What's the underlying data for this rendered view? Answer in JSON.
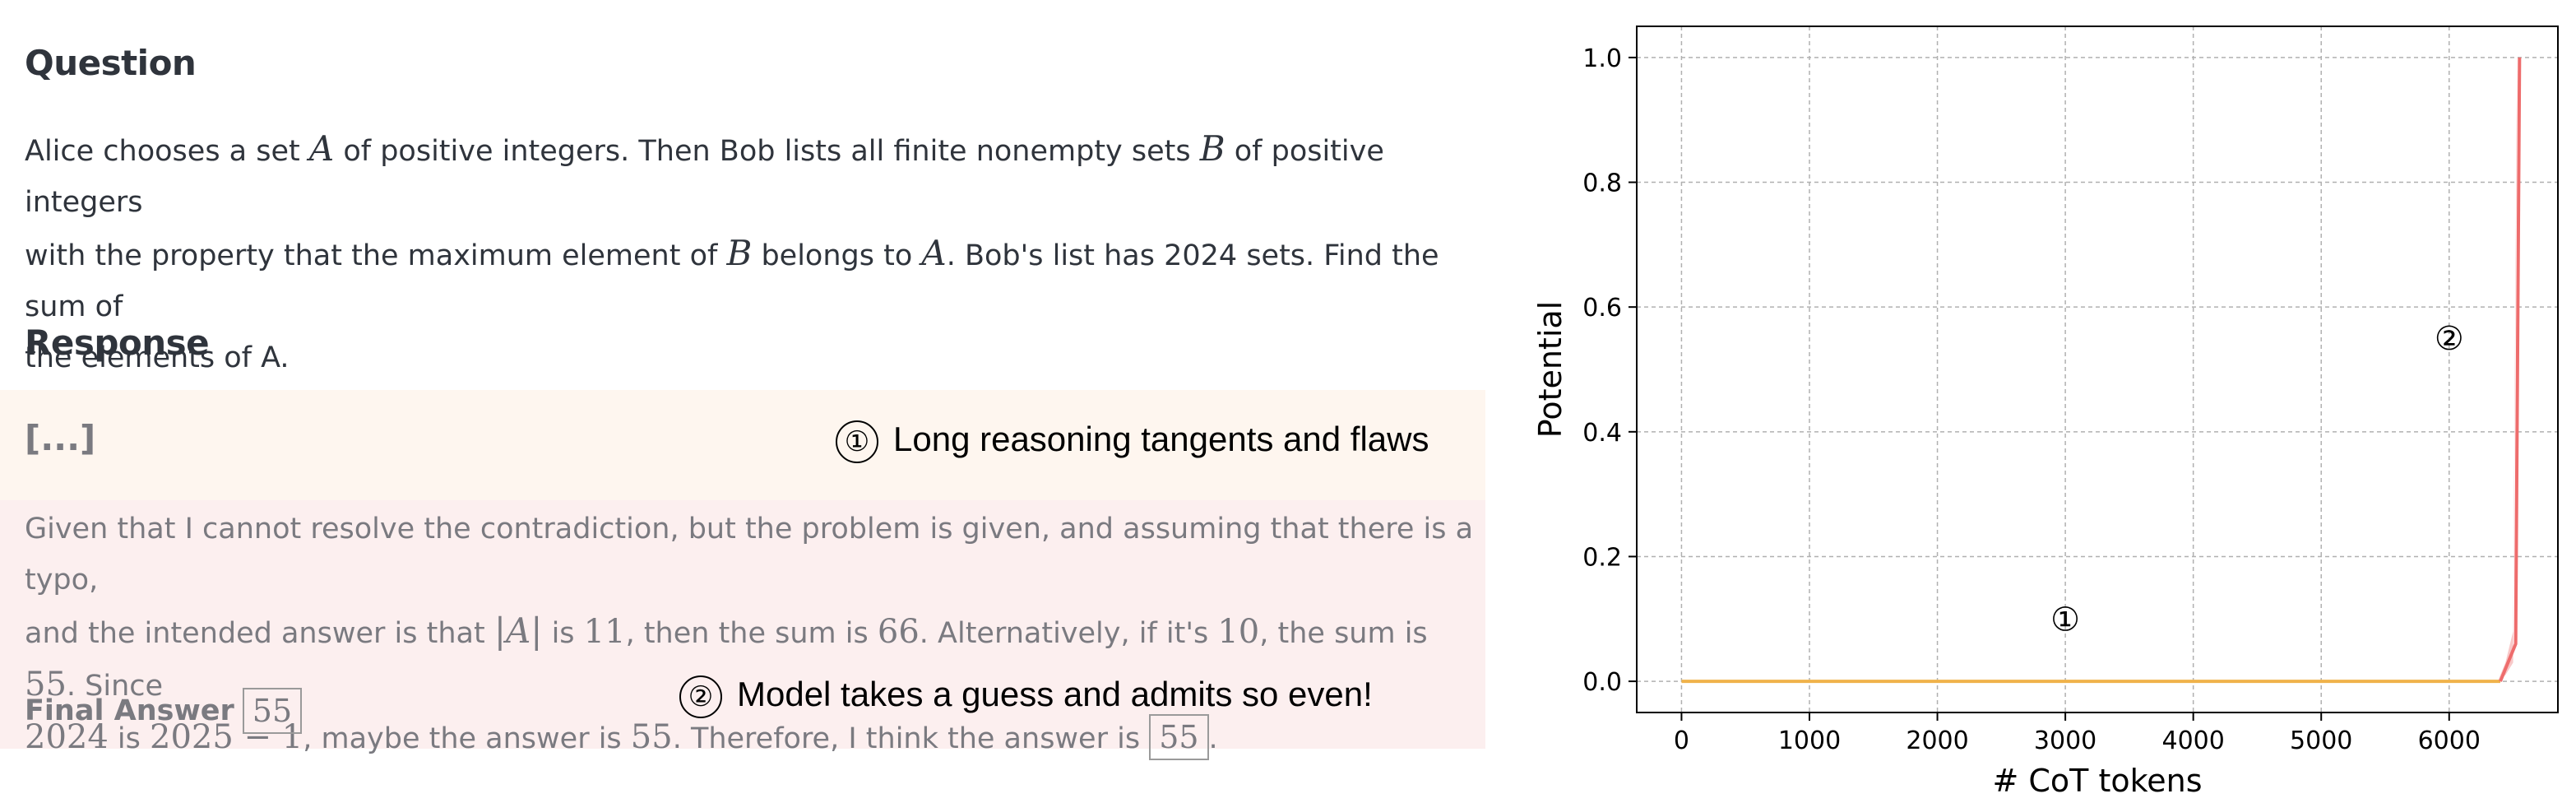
{
  "question": {
    "heading": "Question",
    "parts": [
      "Alice chooses a set ",
      "A",
      " of positive integers. Then Bob lists all finite nonempty sets ",
      "B",
      " of positive integers",
      "with the property that the maximum element of ",
      "B",
      " belongs to ",
      "A",
      ". Bob's list has 2024 sets. Find the sum of",
      "the elements of A."
    ]
  },
  "response": {
    "heading": "Response",
    "ellipsis": "[...]",
    "annotation1": {
      "marker": "①",
      "text": "Long reasoning tangents and flaws"
    },
    "parts": [
      "Given that I cannot resolve the contradiction, but the problem is given, and assuming that there is a typo,",
      "and the intended answer is that ",
      "|A|",
      " is ",
      "11",
      ", then the sum is ",
      "66",
      ". Alternatively, if it's ",
      "10",
      ", the sum is ",
      "55",
      ". Since",
      "2024",
      " is ",
      "2025 − 1",
      ", maybe the answer is ",
      "55",
      ". Therefore, I think the answer is ",
      "55",
      "."
    ],
    "final_label": "Final Answer",
    "final_value": "55",
    "annotation2": {
      "marker": "②",
      "text": "Model takes a guess and admits so even!"
    }
  },
  "chart_data": {
    "type": "line",
    "title": "",
    "xlabel": "# CoT tokens",
    "ylabel": "Potential",
    "xlim": [
      -350,
      6850
    ],
    "ylim": [
      -0.05,
      1.05
    ],
    "xticks": [
      "0",
      "1000",
      "2000",
      "3000",
      "4000",
      "5000",
      "6000"
    ],
    "yticks": [
      "0.0",
      "0.2",
      "0.4",
      "0.6",
      "0.8",
      "1.0"
    ],
    "grid": true,
    "series": [
      {
        "color": "#f0b24a",
        "x": [
          0,
          6400
        ],
        "y": [
          0.0,
          0.0
        ]
      },
      {
        "color": "#ee6c6c",
        "x": [
          6400,
          6520,
          6550
        ],
        "y": [
          0.0,
          0.06,
          1.0
        ]
      }
    ],
    "band": {
      "color": "#f4a3a3",
      "x": [
        6380,
        6440,
        6500,
        6530
      ],
      "lower": [
        0.0,
        0.01,
        0.03,
        0.9
      ],
      "upper": [
        0.0,
        0.03,
        0.08,
        1.0
      ]
    },
    "annotations": [
      {
        "text": "①",
        "x": 3000,
        "y": 0.1
      },
      {
        "text": "②",
        "x": 6000,
        "y": 0.55
      }
    ]
  },
  "colors": {
    "band1": "#fef6ef",
    "band2": "#fcefef"
  }
}
